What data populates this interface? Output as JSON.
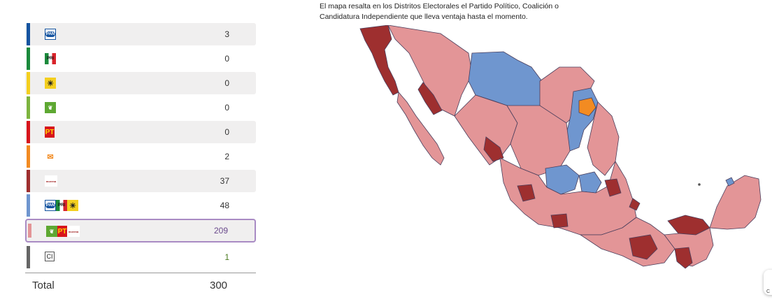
{
  "caption": {
    "line1": "El mapa resalta en los Distritos Electorales el Partido Político, Coalición o",
    "line2": "Candidatura Independiente que lleva ventaja hasta el momento."
  },
  "colors": {
    "pan": "#1554a0",
    "pri": "#1b8a3c",
    "prd": "#f4cf1f",
    "pvem": "#7db43f",
    "pt": "#d7151c",
    "mc": "#f28b22",
    "morena": "#9e2f2f",
    "coalition_pan_pri_prd": "#6f96cf",
    "coalition_pvem_pt_morena": "#e39597",
    "ci": "#666666"
  },
  "results": [
    {
      "id": "pan",
      "logos": [
        "PAN"
      ],
      "count": "3"
    },
    {
      "id": "pri",
      "logos": [
        "PRI"
      ],
      "count": "0"
    },
    {
      "id": "prd",
      "logos": [
        "PRD"
      ],
      "count": "0"
    },
    {
      "id": "pvem",
      "logos": [
        "PVEM"
      ],
      "count": "0"
    },
    {
      "id": "pt",
      "logos": [
        "PT"
      ],
      "count": "0"
    },
    {
      "id": "mc",
      "logos": [
        "MC"
      ],
      "count": "2"
    },
    {
      "id": "morena",
      "logos": [
        "morena"
      ],
      "count": "37"
    },
    {
      "id": "pan-pri-prd",
      "logos": [
        "PAN",
        "PRI",
        "PRD"
      ],
      "count": "48"
    },
    {
      "id": "pvem-pt-morena",
      "logos": [
        "PVEM",
        "PT",
        "morena"
      ],
      "count": "209"
    },
    {
      "id": "ci",
      "logos": [
        "CI"
      ],
      "count": "1"
    }
  ],
  "logo_text": {
    "pan": "PAN",
    "pri": "PRI",
    "prd": "☀",
    "pvem": "❦",
    "pt": "PT",
    "mc": "✉",
    "morena": "morena",
    "ci": "CI"
  },
  "total": {
    "label": "Total",
    "value": "300"
  },
  "fab": {
    "text": "C"
  }
}
